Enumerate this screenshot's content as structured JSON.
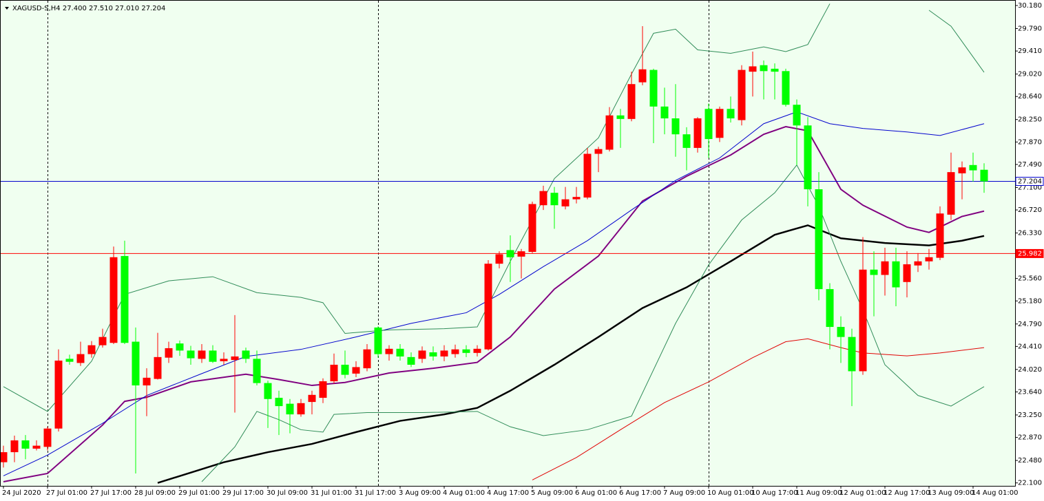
{
  "chart_data": {
    "type": "candlestick",
    "title": "XAGUSD-S,H4  27.400 27.510 27.010 27.204",
    "categories": [
      "24 Jul 2020",
      null,
      null,
      null,
      "27 Jul 01:00",
      null,
      null,
      null,
      "27 Jul 17:00",
      null,
      null,
      null,
      "28 Jul 09:00",
      null,
      null,
      null,
      "29 Jul 01:00",
      null,
      null,
      null,
      "29 Jul 17:00",
      null,
      null,
      null,
      "30 Jul 09:00",
      null,
      null,
      null,
      "31 Jul 01:00",
      null,
      null,
      null,
      "31 Jul 17:00",
      null,
      null,
      null,
      "3 Aug 09:00",
      null,
      null,
      null,
      "4 Aug 01:00",
      null,
      null,
      null,
      "4 Aug 17:00",
      null,
      null,
      null,
      "5 Aug 09:00",
      null,
      null,
      null,
      "6 Aug 01:00",
      null,
      null,
      null,
      "6 Aug 17:00",
      null,
      null,
      null,
      "7 Aug 09:00",
      null,
      null,
      null,
      "10 Aug 01:00",
      null,
      null,
      null,
      "10 Aug 17:00",
      null,
      null,
      null,
      "11 Aug 09:00",
      null,
      null,
      null,
      "12 Aug 01:00",
      null,
      null,
      null,
      "12 Aug 17:00",
      null,
      null,
      null,
      "13 Aug 09:00",
      null,
      null,
      null,
      "14 Aug 01:00",
      null
    ],
    "open": [
      22.45,
      22.62,
      22.82,
      22.68,
      22.71,
      23.02,
      24.2,
      24.13,
      24.28,
      24.43,
      24.47,
      25.94,
      24.49,
      23.75,
      23.86,
      24.22,
      24.46,
      24.34,
      24.2,
      24.34,
      24.16,
      24.18,
      24.34,
      24.2,
      23.79,
      23.54,
      23.44,
      23.26,
      23.47,
      23.54,
      23.82,
      24.1,
      23.95,
      24.04,
      24.73,
      24.28,
      24.37,
      24.23,
      24.2,
      24.31,
      24.24,
      24.28,
      24.36,
      24.3,
      24.36,
      25.81,
      26.04,
      25.93,
      26.01,
      26.8,
      27.01,
      26.78,
      26.9,
      26.93,
      27.67,
      27.74,
      28.32,
      28.26,
      28.88,
      29.09,
      28.47,
      28.27,
      28.0,
      27.77,
      28.43,
      27.94,
      28.43,
      28.24,
      29.06,
      29.17,
      29.11,
      29.07,
      28.5,
      28.15,
      27.07,
      25.38,
      24.74,
      24.57,
      23.99,
      25.71,
      25.62,
      25.85,
      25.5,
      25.78,
      25.85,
      25.91,
      26.64,
      27.34,
      27.48,
      27.4
    ],
    "high": [
      22.73,
      22.9,
      22.91,
      22.82,
      23.05,
      24.36,
      24.27,
      24.49,
      24.5,
      24.71,
      26.1,
      26.2,
      24.73,
      24.04,
      24.64,
      24.49,
      24.51,
      24.42,
      24.45,
      24.43,
      24.31,
      24.94,
      24.39,
      24.34,
      23.83,
      23.66,
      23.52,
      23.52,
      23.66,
      23.87,
      24.29,
      24.34,
      24.16,
      24.45,
      24.75,
      24.43,
      24.45,
      24.31,
      24.41,
      24.41,
      24.43,
      24.44,
      24.43,
      24.43,
      25.87,
      26.02,
      26.29,
      26.06,
      26.86,
      27.13,
      27.11,
      27.11,
      27.11,
      27.77,
      27.79,
      28.46,
      28.43,
      29.06,
      29.83,
      29.11,
      28.79,
      28.85,
      28.12,
      28.29,
      28.52,
      28.47,
      28.64,
      29.17,
      29.4,
      29.25,
      29.2,
      29.11,
      28.59,
      28.29,
      27.36,
      25.48,
      24.92,
      24.71,
      26.26,
      26.02,
      26.08,
      26.08,
      26.02,
      25.99,
      26.06,
      26.78,
      27.69,
      27.54,
      27.69,
      27.51
    ],
    "low": [
      22.36,
      22.45,
      22.5,
      22.65,
      22.65,
      22.97,
      24.1,
      24.08,
      24.22,
      24.39,
      24.45,
      24.45,
      22.26,
      23.23,
      23.85,
      24.13,
      24.25,
      24.1,
      24.13,
      24.13,
      24.1,
      23.29,
      24.13,
      23.75,
      23.03,
      22.91,
      22.94,
      23.22,
      23.26,
      23.45,
      23.78,
      23.87,
      23.89,
      23.99,
      24.22,
      24.17,
      24.17,
      24.06,
      24.13,
      24.17,
      24.16,
      24.22,
      24.23,
      24.24,
      24.34,
      25.73,
      25.5,
      25.56,
      25.99,
      26.72,
      26.4,
      26.73,
      26.83,
      26.9,
      27.36,
      27.71,
      27.77,
      28.22,
      28.83,
      27.85,
      28.0,
      27.62,
      27.39,
      27.69,
      27.6,
      27.87,
      28.2,
      28.15,
      28.64,
      28.59,
      28.59,
      28.47,
      27.48,
      26.78,
      25.19,
      24.36,
      24.13,
      23.4,
      23.93,
      24.92,
      25.27,
      25.09,
      25.24,
      25.67,
      25.71,
      25.87,
      26.55,
      26.9,
      27.2,
      27.01
    ],
    "close": [
      22.62,
      22.82,
      22.68,
      22.73,
      23.02,
      24.17,
      24.15,
      24.28,
      24.43,
      24.57,
      25.92,
      24.47,
      23.75,
      23.88,
      24.23,
      24.38,
      24.34,
      24.21,
      24.34,
      24.15,
      24.2,
      24.24,
      24.2,
      23.79,
      23.52,
      23.4,
      23.26,
      23.45,
      23.59,
      23.82,
      24.1,
      23.93,
      24.06,
      24.36,
      24.28,
      24.37,
      24.24,
      24.1,
      24.34,
      24.24,
      24.34,
      24.36,
      24.3,
      24.37,
      25.81,
      25.97,
      25.92,
      26.02,
      26.82,
      27.04,
      26.8,
      26.9,
      26.94,
      27.67,
      27.75,
      28.32,
      28.26,
      28.85,
      29.1,
      28.47,
      28.27,
      28.0,
      27.77,
      28.27,
      27.92,
      28.43,
      28.27,
      29.09,
      29.15,
      29.07,
      29.06,
      28.5,
      28.15,
      27.07,
      25.38,
      24.74,
      24.57,
      23.99,
      25.71,
      25.62,
      25.85,
      25.41,
      25.8,
      25.85,
      25.92,
      26.66,
      27.36,
      27.44,
      27.39,
      27.204
    ],
    "up_color": "#ff0000",
    "down_color": "#00ff00",
    "ylim": [
      22.05,
      30.25
    ],
    "yticks": [
      {
        "value": 30.18,
        "label": "30.180"
      },
      {
        "value": 29.79,
        "label": "29.790"
      },
      {
        "value": 29.41,
        "label": "29.410"
      },
      {
        "value": 29.02,
        "label": "29.020"
      },
      {
        "value": 28.64,
        "label": "28.640"
      },
      {
        "value": 28.25,
        "label": "28.250"
      },
      {
        "value": 27.87,
        "label": "27.870"
      },
      {
        "value": 27.49,
        "label": "27.490"
      },
      {
        "value": 27.1,
        "label": "27.100"
      },
      {
        "value": 26.72,
        "label": "26.720"
      },
      {
        "value": 26.33,
        "label": "26.330"
      },
      {
        "value": 25.56,
        "label": "25.560"
      },
      {
        "value": 25.18,
        "label": "25.180"
      },
      {
        "value": 24.79,
        "label": "24.790"
      },
      {
        "value": 24.41,
        "label": "24.410"
      },
      {
        "value": 24.02,
        "label": "24.020"
      },
      {
        "value": 23.64,
        "label": "23.640"
      },
      {
        "value": 23.25,
        "label": "23.250"
      },
      {
        "value": 22.87,
        "label": "22.870"
      },
      {
        "value": 22.48,
        "label": "22.480"
      },
      {
        "value": 22.1,
        "label": "22.100"
      }
    ],
    "hlines": [
      {
        "value": 27.204,
        "color": "#0000cd"
      },
      {
        "value": 25.982,
        "color": "#ff0000"
      }
    ],
    "lines": [
      {
        "color": "#000000",
        "width": 2.5,
        "x": [
          14,
          20,
          24,
          28,
          32,
          36,
          40,
          43,
          46,
          50,
          54,
          58,
          62,
          66,
          70,
          73,
          76,
          80,
          84,
          87,
          89
        ],
        "values": [
          22.1,
          22.45,
          22.62,
          22.76,
          22.96,
          23.15,
          23.26,
          23.37,
          23.66,
          24.1,
          24.57,
          25.06,
          25.41,
          25.85,
          26.3,
          26.46,
          26.24,
          26.16,
          26.12,
          26.2,
          26.28
        ]
      },
      {
        "color": "#800080",
        "width": 2,
        "x": [
          0,
          4,
          9,
          11,
          13,
          17,
          22,
          25,
          28,
          31,
          35,
          39,
          43,
          46,
          50,
          54,
          58,
          62,
          66,
          69,
          71,
          73,
          76,
          78,
          82,
          84,
          87,
          89
        ],
        "values": [
          22.12,
          22.26,
          23.08,
          23.48,
          23.55,
          23.81,
          23.94,
          23.85,
          23.75,
          23.8,
          23.96,
          24.04,
          24.14,
          24.57,
          25.38,
          25.94,
          26.87,
          27.29,
          27.65,
          28.0,
          28.13,
          28.06,
          27.07,
          26.8,
          26.43,
          26.34,
          26.61,
          26.7
        ]
      },
      {
        "color": "#0000cd",
        "width": 1,
        "x": [
          0,
          4,
          9,
          13,
          18,
          22,
          27,
          32,
          37,
          42,
          45,
          49,
          53,
          57,
          61,
          65,
          69,
          72,
          75,
          78,
          82,
          85,
          89
        ],
        "values": [
          22.22,
          22.57,
          23.11,
          23.58,
          23.95,
          24.24,
          24.36,
          24.57,
          24.8,
          24.98,
          25.29,
          25.76,
          26.2,
          26.72,
          27.22,
          27.6,
          28.18,
          28.38,
          28.18,
          28.1,
          28.04,
          27.98,
          28.18
        ]
      },
      {
        "color": "#e00000",
        "width": 1,
        "x": [
          48,
          52,
          56,
          60,
          64,
          68,
          71,
          73,
          76,
          78,
          82,
          85,
          89
        ],
        "values": [
          22.15,
          22.53,
          23.0,
          23.46,
          23.81,
          24.22,
          24.49,
          24.54,
          24.39,
          24.3,
          24.25,
          24.3,
          24.39
        ]
      },
      {
        "color": "#2e8b57",
        "width": 1,
        "x": [
          0,
          4,
          8,
          11,
          15,
          19,
          23,
          27,
          29,
          31,
          35,
          40,
          43,
          46,
          50,
          54,
          57,
          59,
          61,
          63,
          66,
          69,
          71,
          73,
          75,
          80,
          84,
          86,
          89
        ],
        "values": [
          23.73,
          23.31,
          24.16,
          25.29,
          25.52,
          25.59,
          25.32,
          25.24,
          25.15,
          24.63,
          24.69,
          24.71,
          24.74,
          25.85,
          27.25,
          27.94,
          29.02,
          29.71,
          29.78,
          29.43,
          29.37,
          29.48,
          29.4,
          29.52,
          30.21,
          null,
          30.1,
          29.83,
          29.05
        ]
      },
      {
        "color": "#2e8b57",
        "width": 1,
        "x": [
          18,
          21,
          23,
          25,
          27,
          29,
          30,
          33,
          38,
          43,
          46,
          49,
          53,
          57,
          61,
          64,
          67,
          70,
          72,
          74,
          76,
          78,
          80,
          83,
          86,
          89
        ],
        "values": [
          22.12,
          22.71,
          23.31,
          23.17,
          23.0,
          22.96,
          23.26,
          23.29,
          23.29,
          23.31,
          23.05,
          22.9,
          23.0,
          23.23,
          24.8,
          25.79,
          26.55,
          27.01,
          27.48,
          26.78,
          25.85,
          25.03,
          24.1,
          23.58,
          23.4,
          23.73
        ]
      }
    ]
  }
}
